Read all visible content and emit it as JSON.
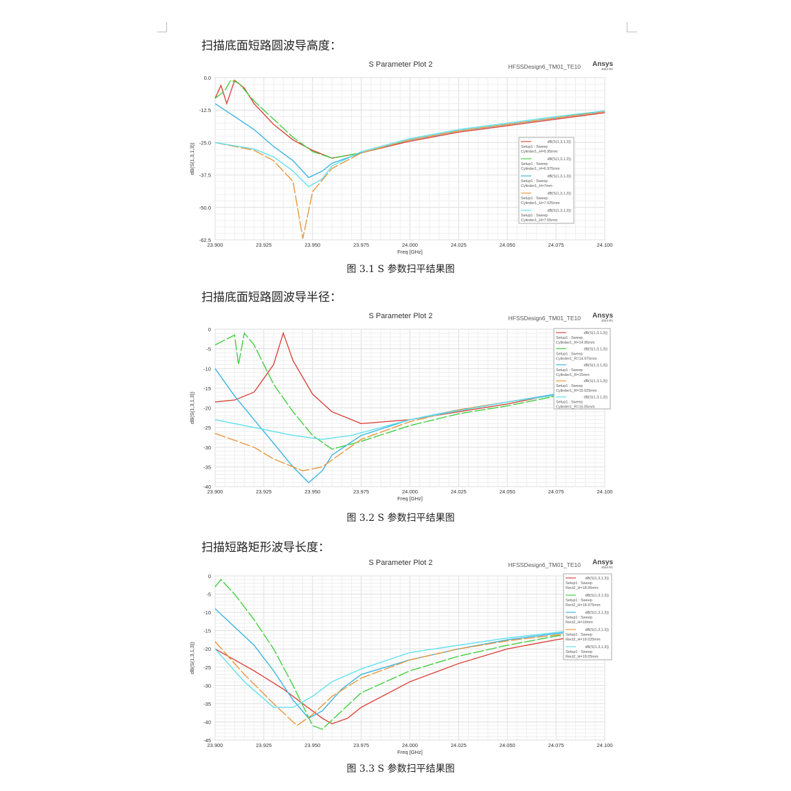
{
  "sections": [
    {
      "heading": "扫描底面短路圆波导高度：",
      "caption": "图 3.1 S 参数扫平结果图"
    },
    {
      "heading": "扫描底面短路圆波导半径：",
      "caption": "图 3.2 S 参数扫平结果图"
    },
    {
      "heading": "扫描短路矩形波导长度：",
      "caption": "图 3.3 S 参数扫平结果图"
    }
  ],
  "colors": {
    "red": "#d9453c",
    "green": "#3fcf3f",
    "blue": "#3bb3e0",
    "orange": "#e8963c",
    "cyan": "#5fe0f0"
  },
  "chart_data": [
    {
      "type": "line",
      "title": "S Parameter Plot 2",
      "design": "HFSSDesign6_TM01_TE10",
      "logo": "Ansys 2024 R1",
      "xlabel": "Freq [GHz]",
      "ylabel": "dB(S(1,3,1,3))",
      "xlim": [
        23.9,
        24.1
      ],
      "ylim": [
        -62.5,
        0
      ],
      "xticks": [
        "23.900",
        "23.925",
        "23.950",
        "23.975",
        "24.000",
        "24.025",
        "24.050",
        "24.075",
        "24.100"
      ],
      "yticks": [
        "0.0",
        "-12.5",
        "-25.0",
        "-37.5",
        "-50.0",
        "-62.5"
      ],
      "grid": true,
      "legend": "right",
      "series": [
        {
          "name": "dB(S(1,3,1,3))",
          "setup": "Setup1 : Sweep",
          "param": "Cylinder1_H=6.95mm",
          "color": "red",
          "x": [
            23.9,
            23.903,
            23.906,
            23.91,
            23.915,
            23.92,
            23.93,
            23.94,
            23.95,
            23.96,
            23.975,
            24.0,
            24.025,
            24.05,
            24.075,
            24.1
          ],
          "y": [
            -8,
            -3,
            -10,
            -1,
            -4,
            -10,
            -18,
            -24,
            -28,
            -31,
            -29,
            -24.5,
            -21,
            -18.5,
            -16,
            -13.5
          ]
        },
        {
          "name": "dB(S(1,3,1,3))",
          "setup": "Setup1 : Sweep",
          "param": "Cylinder1_H=6.975mm",
          "color": "green",
          "x": [
            23.9,
            23.905,
            23.908,
            23.912,
            23.92,
            23.93,
            23.94,
            23.95,
            23.96,
            23.975,
            24.0,
            24.025,
            24.05,
            24.075,
            24.1
          ],
          "y": [
            -8,
            -5,
            -1,
            -2,
            -9,
            -16,
            -23,
            -28.5,
            -31,
            -29,
            -24,
            -20.5,
            -18,
            -15.5,
            -13
          ]
        },
        {
          "name": "dB(S(1,3,1,3))",
          "setup": "Setup1 : Sweep",
          "param": "Cylinder1_H=7mm",
          "color": "blue",
          "x": [
            23.9,
            23.91,
            23.92,
            23.93,
            23.94,
            23.948,
            23.955,
            23.96,
            23.975,
            24.0,
            24.025,
            24.05,
            24.075,
            24.1
          ],
          "y": [
            -10,
            -15,
            -20,
            -26.5,
            -32,
            -38.5,
            -36,
            -33,
            -29,
            -24,
            -20.5,
            -18,
            -15.5,
            -13
          ]
        },
        {
          "name": "dB(S(1,3,1,3))",
          "setup": "Setup1 : Sweep",
          "param": "Cylinder1_H=7.025mm",
          "color": "orange",
          "x": [
            23.9,
            23.92,
            23.93,
            23.94,
            23.945,
            23.95,
            23.96,
            23.975,
            24.0,
            24.025,
            24.05,
            24.075,
            24.1
          ],
          "y": [
            -25,
            -28,
            -32,
            -40,
            -62,
            -44,
            -35,
            -29,
            -24,
            -20.5,
            -18,
            -15.5,
            -13
          ]
        },
        {
          "name": "dB(S(1,3,1,3))",
          "setup": "Setup1 : Sweep",
          "param": "Cylinder1_H=7.05mm",
          "color": "cyan",
          "x": [
            23.9,
            23.92,
            23.93,
            23.94,
            23.948,
            23.955,
            23.96,
            23.975,
            24.0,
            24.025,
            24.05,
            24.075,
            24.1
          ],
          "y": [
            -25,
            -27.5,
            -30.5,
            -36,
            -42,
            -39,
            -34,
            -28.5,
            -23.5,
            -20,
            -17.5,
            -15,
            -12.8
          ]
        }
      ]
    },
    {
      "type": "line",
      "title": "S Parameter Plot 2",
      "design": "HFSSDesign6_TM01_TE10",
      "logo": "Ansys 2024 R1",
      "xlabel": "Freq [GHz]",
      "ylabel": "dB(S(1,3,1,3))",
      "xlim": [
        23.9,
        24.1
      ],
      "ylim": [
        -40,
        0
      ],
      "xticks": [
        "23.900",
        "23.925",
        "23.950",
        "23.975",
        "24.000",
        "24.025",
        "24.050",
        "24.075",
        "24.100"
      ],
      "yticks": [
        "0",
        "-5",
        "-10",
        "-15",
        "-20",
        "-25",
        "-30",
        "-35",
        "-40"
      ],
      "grid": true,
      "legend": "right",
      "series": [
        {
          "name": "dB(S(1,3,1,3))",
          "setup": "Setup1 : Sweep",
          "param": "Cylinder1_R=14.95mm",
          "color": "red",
          "x": [
            23.9,
            23.91,
            23.92,
            23.93,
            23.935,
            23.94,
            23.95,
            23.96,
            23.975,
            24.0,
            24.025,
            24.05,
            24.075,
            24.1
          ],
          "y": [
            -18.5,
            -18,
            -16,
            -9,
            -1,
            -8,
            -16.5,
            -21,
            -24,
            -23,
            -21,
            -19,
            -16.5,
            -15
          ]
        },
        {
          "name": "dB(S(1,3,1,3))",
          "setup": "Setup1 : Sweep",
          "param": "Cylinder1_R=14.975mm",
          "color": "green",
          "x": [
            23.9,
            23.91,
            23.912,
            23.915,
            23.92,
            23.93,
            23.94,
            23.95,
            23.96,
            23.975,
            24.0,
            24.025,
            24.05,
            24.075,
            24.1
          ],
          "y": [
            -4,
            -1.5,
            -9,
            -1,
            -4,
            -14,
            -21,
            -27,
            -30.5,
            -28.5,
            -24.5,
            -21.5,
            -19.5,
            -17,
            -15.3
          ]
        },
        {
          "name": "dB(S(1,3,1,3))",
          "setup": "Setup1 : Sweep",
          "param": "Cylinder1_R=15mm",
          "color": "blue",
          "x": [
            23.9,
            23.91,
            23.92,
            23.93,
            23.94,
            23.948,
            23.955,
            23.96,
            23.975,
            24.0,
            24.025,
            24.05,
            24.075,
            24.1
          ],
          "y": [
            -10,
            -17,
            -23,
            -29,
            -35,
            -39,
            -36,
            -32,
            -27,
            -23,
            -20.5,
            -18.5,
            -16.5,
            -15
          ]
        },
        {
          "name": "dB(S(1,3,1,3))",
          "setup": "Setup1 : Sweep",
          "param": "Cylinder1_R=15.025mm",
          "color": "orange",
          "x": [
            23.9,
            23.92,
            23.93,
            23.945,
            23.955,
            23.965,
            23.975,
            24.0,
            24.025,
            24.05,
            24.075,
            24.1
          ],
          "y": [
            -26.5,
            -30,
            -33,
            -36,
            -35,
            -31.5,
            -28,
            -23.5,
            -20.5,
            -18.5,
            -16.8,
            -15.5
          ]
        },
        {
          "name": "dB(S(1,3,1,3))",
          "setup": "Setup1 : Sweep",
          "param": "Cylinder1_R=15.05mm",
          "color": "cyan",
          "x": [
            23.9,
            23.92,
            23.94,
            23.955,
            23.97,
            24.0,
            24.05,
            24.1
          ],
          "y": [
            -23,
            -25,
            -27,
            -28,
            -27,
            -23,
            -18.5,
            -15
          ]
        }
      ]
    },
    {
      "type": "line",
      "title": "S Parameter Plot 2",
      "design": "HFSSDesign6_TM01_TE10",
      "logo": "Ansys 2024 R1",
      "xlabel": "Freq [GHz]",
      "ylabel": "dB(S(1,3,1,3))",
      "xlim": [
        23.9,
        24.1
      ],
      "ylim": [
        -45,
        0
      ],
      "xticks": [
        "23.900",
        "23.925",
        "23.950",
        "23.975",
        "24.000",
        "24.025",
        "24.050",
        "24.075",
        "24.100"
      ],
      "yticks": [
        "0",
        "-5",
        "-10",
        "-15",
        "-20",
        "-25",
        "-30",
        "-35",
        "-40",
        "-45"
      ],
      "grid": true,
      "legend": "right",
      "series": [
        {
          "name": "dB(S(1,3,1,3))",
          "setup": "Setup1 : Sweep",
          "param": "Rect2_H=18.95mm",
          "color": "red",
          "x": [
            23.9,
            23.92,
            23.935,
            23.945,
            23.955,
            23.96,
            23.968,
            23.975,
            24.0,
            24.025,
            24.05,
            24.075,
            24.1
          ],
          "y": [
            -20,
            -26,
            -31,
            -35,
            -39,
            -40.5,
            -39,
            -36,
            -29,
            -24,
            -20,
            -17.5,
            -15.5
          ]
        },
        {
          "name": "dB(S(1,3,1,3))",
          "setup": "Setup1 : Sweep",
          "param": "Rect2_H=18.975mm",
          "color": "green",
          "x": [
            23.9,
            23.903,
            23.91,
            23.92,
            23.93,
            23.94,
            23.95,
            23.955,
            23.965,
            23.975,
            24.0,
            24.025,
            24.05,
            24.075,
            24.1
          ],
          "y": [
            -3,
            -1,
            -5,
            -12,
            -20,
            -30,
            -41,
            -42,
            -37,
            -32,
            -26,
            -22,
            -19,
            -16.5,
            -14.8
          ]
        },
        {
          "name": "dB(S(1,3,1,3))",
          "setup": "Setup1 : Sweep",
          "param": "Rect2_H=19mm",
          "color": "blue",
          "x": [
            23.9,
            23.91,
            23.92,
            23.93,
            23.94,
            23.948,
            23.955,
            23.965,
            23.975,
            24.0,
            24.025,
            24.05,
            24.075,
            24.1
          ],
          "y": [
            -9,
            -14,
            -19,
            -26,
            -34,
            -39,
            -37,
            -31,
            -27,
            -23,
            -20,
            -17.5,
            -15.8,
            -14.5
          ]
        },
        {
          "name": "dB(S(1,3,1,3))",
          "setup": "Setup1 : Sweep",
          "param": "Rect2_H=19.025mm",
          "color": "orange",
          "x": [
            23.9,
            23.915,
            23.93,
            23.942,
            23.95,
            23.96,
            23.975,
            24.0,
            24.025,
            24.05,
            24.075,
            24.1
          ],
          "y": [
            -18,
            -27,
            -35,
            -41,
            -38,
            -33,
            -28,
            -23,
            -20,
            -17.8,
            -16.2,
            -15
          ]
        },
        {
          "name": "dB(S(1,3,1,3))",
          "setup": "Setup1 : Sweep",
          "param": "Rect2_H=19.05mm",
          "color": "cyan",
          "x": [
            23.9,
            23.915,
            23.93,
            23.94,
            23.95,
            23.96,
            23.975,
            24.0,
            24.05,
            24.1
          ],
          "y": [
            -20,
            -29,
            -36,
            -36,
            -33,
            -29,
            -25.5,
            -21,
            -17,
            -14
          ]
        }
      ]
    }
  ]
}
